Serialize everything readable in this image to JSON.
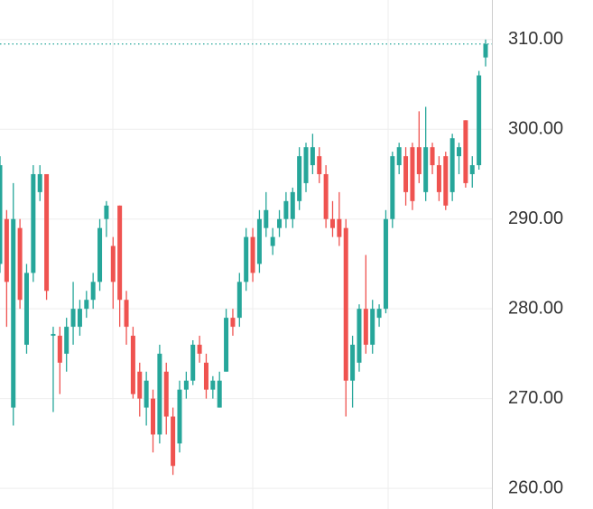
{
  "chart_data": {
    "type": "candlestick",
    "up_color": "#26a69a",
    "down_color": "#ef5350",
    "ylim": [
      257.7,
      314.4
    ],
    "yticks": [
      {
        "value": 260,
        "label": "260.00"
      },
      {
        "value": 270,
        "label": "270.00"
      },
      {
        "value": 280,
        "label": "280.00"
      },
      {
        "value": 290,
        "label": "290.00"
      },
      {
        "value": 300,
        "label": "300.00"
      },
      {
        "value": 310,
        "label": "310.00"
      }
    ],
    "grid": true,
    "last_price_line": true,
    "open": [
      285,
      290,
      269,
      289,
      276,
      284,
      293,
      295,
      277,
      277,
      275,
      278,
      278,
      280,
      281,
      283,
      290,
      287,
      291.5,
      281,
      277,
      273,
      269,
      270,
      266,
      273,
      268,
      265,
      271,
      272,
      276,
      274,
      271,
      269,
      273,
      279,
      279,
      283,
      288,
      285,
      289,
      287,
      289,
      290,
      290,
      292,
      294,
      296,
      297,
      295,
      290,
      290,
      289,
      272,
      274,
      280,
      276,
      279,
      280,
      290,
      296,
      297,
      298,
      298,
      293,
      298,
      296,
      297,
      293,
      297,
      301,
      295,
      296,
      308
    ],
    "high": [
      297,
      291,
      294,
      290,
      285,
      296,
      296,
      295,
      278,
      278,
      279,
      283,
      281,
      282,
      284,
      290,
      292,
      288,
      291.5,
      282,
      278,
      274,
      273,
      271,
      276,
      274,
      269,
      272,
      273,
      276.5,
      277,
      275,
      272.5,
      273,
      280,
      280,
      284,
      289,
      289,
      291,
      293,
      289,
      291,
      293,
      293.5,
      298,
      298.5,
      299.5,
      298,
      296,
      292,
      293,
      290,
      277,
      280.5,
      286,
      281,
      280.5,
      291,
      297.5,
      298.5,
      298,
      298.5,
      302,
      302.5,
      298.5,
      297,
      297.5,
      299.5,
      298.5,
      301,
      297,
      306.5,
      310
    ],
    "low": [
      284,
      278,
      267,
      280,
      275,
      283,
      292,
      281,
      268.5,
      270.5,
      273,
      276,
      277,
      279,
      280,
      282,
      288,
      280,
      278,
      276,
      270,
      268,
      267,
      264,
      265,
      266,
      261.5,
      264,
      270,
      271.5,
      274,
      270,
      270,
      269,
      273,
      277,
      278,
      282,
      283,
      284,
      288,
      286,
      288,
      289,
      289,
      291,
      293,
      295,
      294,
      289,
      288,
      287,
      268,
      269,
      273,
      275,
      275,
      278,
      279.5,
      289,
      295,
      291.5,
      291,
      294,
      292,
      295,
      292,
      291,
      292,
      295,
      293.5,
      293.5,
      295.5,
      307
    ],
    "close": [
      296,
      283,
      290,
      281,
      284,
      295,
      295,
      282,
      277.2,
      274,
      278,
      280,
      280,
      281,
      283,
      289,
      291.5,
      283,
      281,
      278,
      270.5,
      270,
      272,
      266,
      275,
      268,
      262.5,
      271,
      272,
      276,
      275,
      271,
      272,
      272,
      279,
      278,
      283,
      288,
      284,
      290,
      291,
      288,
      290,
      292,
      293,
      297,
      298,
      298,
      295,
      290,
      289,
      288,
      272,
      276,
      280,
      276,
      280,
      280,
      290,
      297,
      298,
      293,
      292,
      295,
      298,
      296,
      293,
      291.5,
      299,
      298,
      294,
      296,
      306,
      309.5
    ]
  }
}
